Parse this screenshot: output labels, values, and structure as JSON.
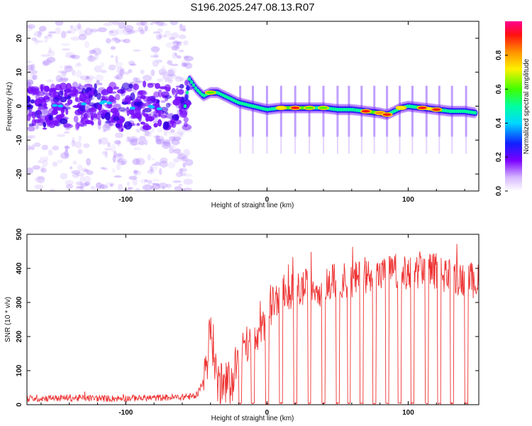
{
  "title": "S196.2025.247.08.13.R07",
  "chart_data": [
    {
      "type": "heatmap",
      "title": "S196.2025.247.08.13.R07",
      "xlabel": "Height of straight line (km)",
      "ylabel": "Frequency (Hz)",
      "xlim": [
        -170,
        150
      ],
      "ylim": [
        -25,
        25
      ],
      "x_ticks": [
        -100,
        0,
        100
      ],
      "y_ticks": [
        -20,
        -10,
        0,
        10,
        20
      ],
      "colorbar": {
        "label": "Normalized spectral amplitude",
        "range": [
          0,
          1
        ],
        "ticks": [
          "0.0",
          "0.2",
          "0.4",
          "0.6",
          "0.8"
        ],
        "tick_values": [
          0,
          0.2,
          0.4,
          0.6,
          0.8
        ]
      },
      "signal_track": {
        "x": [
          -58,
          -55,
          -50,
          -45,
          -40,
          -35,
          -30,
          -25,
          -20,
          -15,
          -10,
          -5,
          0,
          10,
          20,
          30,
          40,
          50,
          60,
          70,
          80,
          85,
          90,
          95,
          100,
          110,
          120,
          130,
          140,
          148
        ],
        "freq": [
          0,
          8,
          5,
          3,
          4,
          4,
          3,
          2,
          1,
          0.5,
          0,
          -0.5,
          -1,
          -0.5,
          -0.5,
          -0.5,
          -0.5,
          -1,
          -1,
          -1.5,
          -2,
          -2.5,
          -1.5,
          -0.5,
          0,
          -0.5,
          -1,
          -1.5,
          -1.5,
          -2
        ],
        "amplitude": [
          0.4,
          0.45,
          0.35,
          0.5,
          0.6,
          0.5,
          0.35,
          0.3,
          0.3,
          0.3,
          0.3,
          0.3,
          0.3,
          0.7,
          0.9,
          0.6,
          0.6,
          0.4,
          0.4,
          0.85,
          0.8,
          0.85,
          0.5,
          0.7,
          0.4,
          0.9,
          0.9,
          0.4,
          0.35,
          0.3
        ]
      }
    },
    {
      "type": "line",
      "xlabel": "Height of straight line (km)",
      "ylabel": "SNR (10 * v/v)",
      "xlim": [
        -170,
        150
      ],
      "ylim": [
        0,
        500
      ],
      "x_ticks": [
        -100,
        0,
        100
      ],
      "y_ticks": [
        0,
        100,
        200,
        300,
        400,
        500
      ],
      "series": [
        {
          "name": "SNR",
          "color": "#ee3333",
          "envelope_x": [
            -170,
            -140,
            -110,
            -80,
            -60,
            -50,
            -45,
            -42,
            -40,
            -37,
            -35,
            -30,
            -25,
            -20,
            -15,
            -10,
            -5,
            0,
            5,
            10,
            20,
            30,
            40,
            50,
            60,
            70,
            80,
            90,
            100,
            110,
            120,
            130,
            140,
            150
          ],
          "envelope_y": [
            18,
            20,
            18,
            20,
            22,
            25,
            70,
            150,
            220,
            140,
            60,
            50,
            70,
            150,
            180,
            170,
            200,
            260,
            300,
            330,
            330,
            350,
            340,
            370,
            360,
            380,
            380,
            390,
            380,
            400,
            390,
            380,
            370,
            360
          ],
          "dropouts_x": [
            -19,
            -10,
            0,
            10,
            20,
            30,
            40,
            50,
            58,
            67,
            76,
            85,
            94,
            103,
            113,
            122,
            131,
            141
          ]
        }
      ]
    }
  ]
}
